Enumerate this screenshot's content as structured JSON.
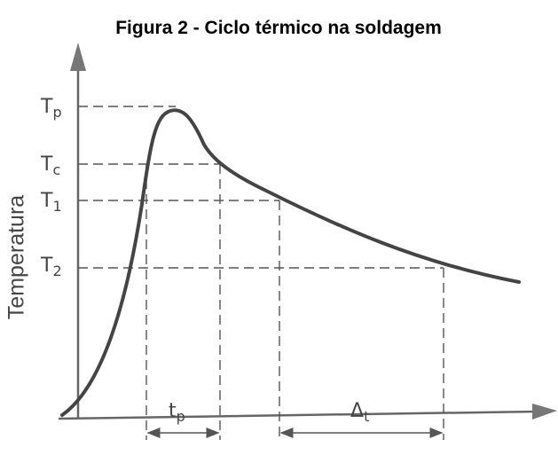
{
  "title": "Figura 2 - Ciclo térmico na soldagem",
  "y_axis_label": "Temperatura",
  "levels": [
    {
      "base": "T",
      "sub": "p"
    },
    {
      "base": "T",
      "sub": "c"
    },
    {
      "base": "T",
      "sub": "1"
    },
    {
      "base": "T",
      "sub": "2"
    }
  ],
  "intervals": [
    {
      "base": "t",
      "sub": "p"
    },
    {
      "base": "Δ",
      "sub": "t"
    }
  ]
}
